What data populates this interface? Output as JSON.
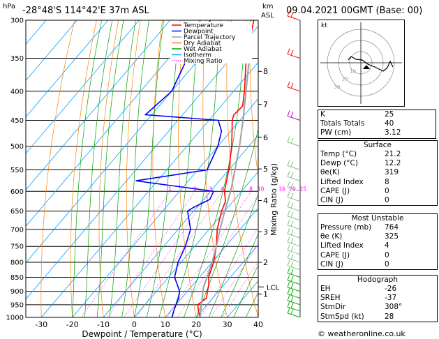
{
  "header": {
    "location": "-28°48'S  114°42'E  37m  ASL",
    "datetime": "09.04.2021  00GMT  (Base: 00)",
    "hpa_label": "hPa",
    "km_label": "km",
    "asl_label": "ASL"
  },
  "footer": {
    "credit": "© weatheronline.co.uk"
  },
  "chart_data": {
    "type": "line",
    "subtype": "skew-T log-P diagram",
    "xlabel": "Dewpoint / Temperature (°C)",
    "ylabel_right": "Mixing Ratio (g/kg)",
    "x_ticks": [
      -30,
      -20,
      -10,
      0,
      10,
      20,
      30,
      40
    ],
    "pressure_ticks": [
      300,
      350,
      400,
      450,
      500,
      550,
      600,
      650,
      700,
      750,
      800,
      850,
      900,
      950,
      1000
    ],
    "xlim": [
      -35,
      40
    ],
    "ylim": [
      1000,
      300
    ],
    "km_ticks": [
      {
        "label": "1",
        "p": 910
      },
      {
        "label": "2",
        "p": 800
      },
      {
        "label": "3",
        "p": 707
      },
      {
        "label": "4",
        "p": 623
      },
      {
        "label": "5",
        "p": 548
      },
      {
        "label": "6",
        "p": 482
      },
      {
        "label": "7",
        "p": 422
      },
      {
        "label": "8",
        "p": 369
      }
    ],
    "lcl": {
      "label": "LCL",
      "p": 884
    },
    "mixing_ratio_labels": [
      "1",
      "2",
      "3",
      "4",
      "8",
      "10",
      "16",
      "20",
      "25"
    ],
    "mixing_ratio_values": [
      1,
      2,
      3,
      4,
      8,
      10,
      16,
      20,
      25
    ],
    "legend": [
      "Temperature",
      "Dewpoint",
      "Parcel Trajectory",
      "Dry Adiabat",
      "Wet Adiabat",
      "Isotherm",
      "Mixing Ratio"
    ],
    "legend_colors": [
      "#ff0000",
      "#0000ff",
      "#a0a0a0",
      "#ff8000",
      "#00a000",
      "#00a0ff",
      "#ff00ff"
    ],
    "series": [
      {
        "name": "Temperature",
        "color": "#ff0000",
        "points": [
          [
            1000,
            21.2
          ],
          [
            975,
            19
          ],
          [
            950,
            17
          ],
          [
            925,
            18
          ],
          [
            900,
            16.5
          ],
          [
            875,
            15
          ],
          [
            850,
            13
          ],
          [
            800,
            10.5
          ],
          [
            750,
            7
          ],
          [
            700,
            2.6
          ],
          [
            650,
            -1
          ],
          [
            625,
            -2.4
          ],
          [
            600,
            -5.5
          ],
          [
            550,
            -10
          ],
          [
            500,
            -15.5
          ],
          [
            470,
            -19.6
          ],
          [
            450,
            -22.5
          ],
          [
            440,
            -23.5
          ],
          [
            425,
            -23
          ],
          [
            400,
            -26.5
          ],
          [
            350,
            -35
          ],
          [
            300,
            -43
          ]
        ]
      },
      {
        "name": "Dewpoint",
        "color": "#0000ff",
        "points": [
          [
            1000,
            12.2
          ],
          [
            975,
            11
          ],
          [
            950,
            10
          ],
          [
            925,
            9
          ],
          [
            900,
            7.5
          ],
          [
            850,
            2
          ],
          [
            800,
            -1
          ],
          [
            750,
            -3
          ],
          [
            700,
            -6
          ],
          [
            650,
            -12
          ],
          [
            640,
            -11
          ],
          [
            620,
            -8
          ],
          [
            600,
            -9
          ],
          [
            575,
            -37
          ],
          [
            550,
            -17
          ],
          [
            500,
            -20
          ],
          [
            470,
            -23
          ],
          [
            450,
            -27
          ],
          [
            440,
            -52
          ],
          [
            400,
            -50
          ],
          [
            350,
            -54
          ],
          [
            300,
            -57
          ]
        ]
      },
      {
        "name": "Parcel Trajectory",
        "color": "#a0a0a0",
        "points": [
          [
            1000,
            21.2
          ],
          [
            884,
            14
          ],
          [
            850,
            12.5
          ],
          [
            800,
            10
          ],
          [
            750,
            7
          ],
          [
            700,
            3.5
          ],
          [
            650,
            0
          ],
          [
            600,
            -3.5
          ],
          [
            550,
            -8
          ],
          [
            500,
            -13
          ],
          [
            450,
            -19
          ],
          [
            400,
            -26
          ],
          [
            350,
            -34
          ],
          [
            300,
            -44
          ]
        ]
      }
    ]
  },
  "hodograph": {
    "label": "kt",
    "ring_labels": [
      "10",
      "20",
      "30"
    ]
  },
  "indices": [
    {
      "label": "K",
      "value": "25"
    },
    {
      "label": "Totals Totals",
      "value": "40"
    },
    {
      "label": "PW (cm)",
      "value": "3.12"
    }
  ],
  "surface": {
    "title": "Surface",
    "rows": [
      {
        "label": "Temp (°C)",
        "value": "21.2"
      },
      {
        "label": "Dewp (°C)",
        "value": "12.2"
      },
      {
        "label": "θe(K)",
        "value": "319"
      },
      {
        "label": "Lifted Index",
        "value": "8"
      },
      {
        "label": "CAPE (J)",
        "value": "0"
      },
      {
        "label": "CIN (J)",
        "value": "0"
      }
    ]
  },
  "most_unstable": {
    "title": "Most Unstable",
    "rows": [
      {
        "label": "Pressure (mb)",
        "value": "764"
      },
      {
        "label": "θe (K)",
        "value": "325"
      },
      {
        "label": "Lifted Index",
        "value": "4"
      },
      {
        "label": "CAPE (J)",
        "value": "0"
      },
      {
        "label": "CIN (J)",
        "value": "0"
      }
    ]
  },
  "hodograph_indices": {
    "title": "Hodograph",
    "rows": [
      {
        "label": "EH",
        "value": "-26"
      },
      {
        "label": "SREH",
        "value": "-37"
      },
      {
        "label": "StmDir",
        "value": "308°"
      },
      {
        "label": "StmSpd (kt)",
        "value": "28"
      }
    ]
  }
}
